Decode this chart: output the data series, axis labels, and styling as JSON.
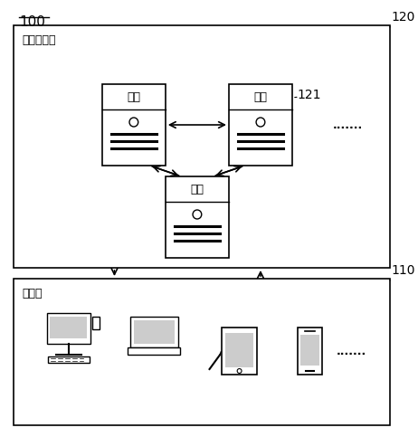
{
  "bg_color": "#ffffff",
  "border_color": "#000000",
  "label_100": "100",
  "label_120": "120",
  "label_110": "110",
  "label_121": "121",
  "label_blockchain": "区块链网络",
  "label_client": "客户端",
  "label_node": "节点",
  "dots": ".......",
  "node_box_color": "#ffffff",
  "node_border_color": "#000000",
  "outer_box_color": "#ffffff",
  "outer_box_border": "#000000"
}
